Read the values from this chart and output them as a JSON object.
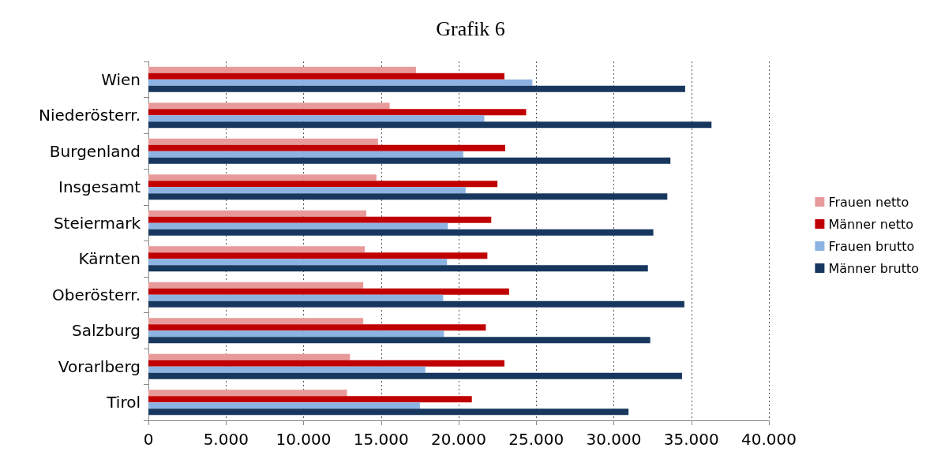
{
  "chart_data": {
    "type": "bar",
    "orientation": "horizontal",
    "title": "Grafik 6",
    "categories": [
      "Wien",
      "Niederösterr.",
      "Burgenland",
      "Insgesamt",
      "Steiermark",
      "Kärnten",
      "Oberösterr.",
      "Salzburg",
      "Vorarlberg",
      "Tirol"
    ],
    "series": [
      {
        "name": "Frauen netto",
        "color": "#e89a9a",
        "values": [
          17250,
          15550,
          14800,
          14700,
          14050,
          13950,
          13850,
          13850,
          13000,
          12800
        ]
      },
      {
        "name": "Männer netto",
        "color": "#c00000",
        "values": [
          22950,
          24350,
          23000,
          22500,
          22100,
          21850,
          23250,
          21750,
          22950,
          20850
        ]
      },
      {
        "name": "Frauen brutto",
        "color": "#8db3e2",
        "values": [
          24750,
          21650,
          20300,
          20450,
          19300,
          19250,
          19000,
          19050,
          17850,
          17500
        ]
      },
      {
        "name": "Männer brutto",
        "color": "#17375e",
        "values": [
          34600,
          36300,
          33650,
          33450,
          32550,
          32200,
          34550,
          32350,
          34400,
          30950
        ]
      }
    ],
    "xlim": [
      0,
      40000
    ],
    "xticks": [
      0,
      {
        "value": 5000,
        "label": "5.000"
      },
      {
        "value": 10000,
        "label": "10.000"
      },
      {
        "value": 15000,
        "label": "15.000"
      },
      {
        "value": 20000,
        "label": "20.000"
      },
      {
        "value": 25000,
        "label": "25.000"
      },
      {
        "value": 30000,
        "label": "30.000"
      },
      {
        "value": 35000,
        "label": "35.000"
      },
      {
        "value": 40000,
        "label": "40.000"
      }
    ],
    "grid": "x",
    "legend": "right"
  }
}
